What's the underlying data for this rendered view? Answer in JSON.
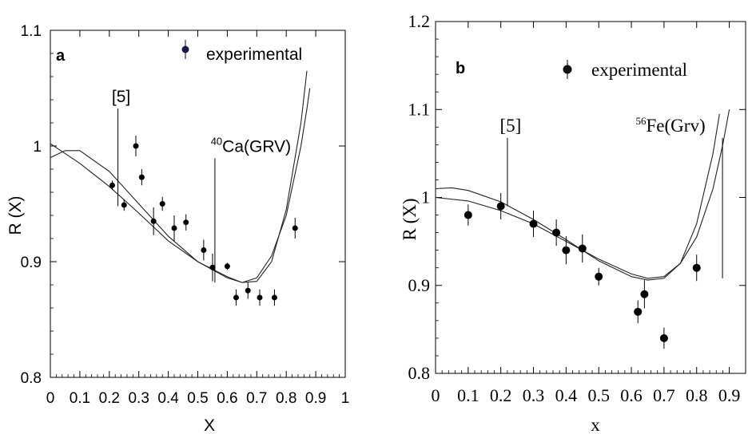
{
  "chart_data": [
    {
      "type": "scatter",
      "panel_label": "a",
      "xlabel": "X",
      "ylabel": "R (X)",
      "xlim": [
        0,
        1
      ],
      "ylim": [
        0.8,
        1.1
      ],
      "x_ticks": [
        "0",
        "0.1",
        "0.2",
        "0.3",
        "0.4",
        "0.5",
        "0.6",
        "0.7",
        "0.8",
        "0.9",
        "1"
      ],
      "y_ticks": [
        "0.8",
        "0.9",
        "1",
        "1.1"
      ],
      "legend": {
        "label": "experimental",
        "position": "top-right"
      },
      "annotations": [
        {
          "text": "[5]",
          "x": 0.24,
          "y": 1.038
        },
        {
          "text_sup": "40",
          "text": "Ca(GRV)",
          "x": 0.68,
          "y": 0.995
        }
      ],
      "series": [
        {
          "kind": "points",
          "points": [
            {
              "x": 0.21,
              "y": 0.966,
              "err": 0.004
            },
            {
              "x": 0.25,
              "y": 0.949,
              "err": 0.005
            },
            {
              "x": 0.29,
              "y": 1.0,
              "err": 0.009
            },
            {
              "x": 0.31,
              "y": 0.973,
              "err": 0.007
            },
            {
              "x": 0.35,
              "y": 0.935,
              "err": 0.012
            },
            {
              "x": 0.38,
              "y": 0.95,
              "err": 0.006
            },
            {
              "x": 0.42,
              "y": 0.929,
              "err": 0.011
            },
            {
              "x": 0.46,
              "y": 0.934,
              "err": 0.007
            },
            {
              "x": 0.52,
              "y": 0.91,
              "err": 0.009
            },
            {
              "x": 0.55,
              "y": 0.895,
              "err": 0.012
            },
            {
              "x": 0.6,
              "y": 0.896,
              "err": 0.003
            },
            {
              "x": 0.63,
              "y": 0.869,
              "err": 0.007
            },
            {
              "x": 0.67,
              "y": 0.875,
              "err": 0.007
            },
            {
              "x": 0.71,
              "y": 0.869,
              "err": 0.007
            },
            {
              "x": 0.76,
              "y": 0.869,
              "err": 0.007
            },
            {
              "x": 0.83,
              "y": 0.929,
              "err": 0.009
            }
          ]
        },
        {
          "kind": "curve",
          "points": [
            [
              0.0,
              1.002
            ],
            [
              0.1,
              0.985
            ],
            [
              0.2,
              0.965
            ],
            [
              0.3,
              0.942
            ],
            [
              0.4,
              0.918
            ],
            [
              0.5,
              0.9
            ],
            [
              0.6,
              0.886
            ],
            [
              0.65,
              0.882
            ],
            [
              0.7,
              0.886
            ],
            [
              0.75,
              0.905
            ],
            [
              0.8,
              0.94
            ],
            [
              0.85,
              1.0
            ],
            [
              0.87,
              1.032
            ],
            [
              0.88,
              1.05
            ]
          ]
        },
        {
          "kind": "curve",
          "points": [
            [
              0.0,
              0.99
            ],
            [
              0.05,
              0.996
            ],
            [
              0.1,
              0.996
            ],
            [
              0.2,
              0.978
            ],
            [
              0.3,
              0.95
            ],
            [
              0.4,
              0.922
            ],
            [
              0.5,
              0.9
            ],
            [
              0.6,
              0.887
            ],
            [
              0.65,
              0.882
            ],
            [
              0.7,
              0.883
            ],
            [
              0.75,
              0.9
            ],
            [
              0.8,
              0.945
            ],
            [
              0.85,
              1.02
            ],
            [
              0.87,
              1.065
            ]
          ]
        }
      ]
    },
    {
      "type": "scatter",
      "panel_label": "b",
      "xlabel": "x",
      "ylabel": "R (X)",
      "xlim": [
        0,
        0.95
      ],
      "ylim": [
        0.8,
        1.2
      ],
      "x_ticks": [
        "0",
        "0.1",
        "0.2",
        "0.3",
        "0.4",
        "0.5",
        "0.6",
        "0.7",
        "0.8",
        "0.9"
      ],
      "y_ticks": [
        "0.8",
        "0.9",
        "1",
        "1.1",
        "1.2"
      ],
      "legend": {
        "label": "experimental",
        "position": "top-right"
      },
      "annotations": [
        {
          "text": "[5]",
          "x": 0.23,
          "y": 1.075
        },
        {
          "text_sup": "56",
          "text": "Fe(Grv)",
          "x": 0.72,
          "y": 1.075
        }
      ],
      "series": [
        {
          "kind": "points",
          "points": [
            {
              "x": 0.1,
              "y": 0.98,
              "err": 0.012
            },
            {
              "x": 0.2,
              "y": 0.99,
              "err": 0.015
            },
            {
              "x": 0.3,
              "y": 0.97,
              "err": 0.015
            },
            {
              "x": 0.37,
              "y": 0.96,
              "err": 0.015
            },
            {
              "x": 0.4,
              "y": 0.94,
              "err": 0.016
            },
            {
              "x": 0.45,
              "y": 0.942,
              "err": 0.016
            },
            {
              "x": 0.5,
              "y": 0.91,
              "err": 0.01
            },
            {
              "x": 0.62,
              "y": 0.87,
              "err": 0.013
            },
            {
              "x": 0.64,
              "y": 0.89,
              "err": 0.016
            },
            {
              "x": 0.7,
              "y": 0.84,
              "err": 0.012
            },
            {
              "x": 0.8,
              "y": 0.92,
              "err": 0.015
            }
          ]
        },
        {
          "kind": "curve",
          "points": [
            [
              0.0,
              1.01
            ],
            [
              0.05,
              1.011
            ],
            [
              0.1,
              1.008
            ],
            [
              0.2,
              0.995
            ],
            [
              0.3,
              0.975
            ],
            [
              0.4,
              0.952
            ],
            [
              0.5,
              0.928
            ],
            [
              0.6,
              0.91
            ],
            [
              0.65,
              0.906
            ],
            [
              0.7,
              0.908
            ],
            [
              0.75,
              0.925
            ],
            [
              0.8,
              0.97
            ],
            [
              0.85,
              1.05
            ],
            [
              0.87,
              1.095
            ]
          ]
        },
        {
          "kind": "curve",
          "points": [
            [
              0.0,
              1.0
            ],
            [
              0.1,
              0.996
            ],
            [
              0.2,
              0.985
            ],
            [
              0.3,
              0.97
            ],
            [
              0.4,
              0.95
            ],
            [
              0.5,
              0.93
            ],
            [
              0.6,
              0.913
            ],
            [
              0.65,
              0.908
            ],
            [
              0.7,
              0.91
            ],
            [
              0.75,
              0.925
            ],
            [
              0.8,
              0.955
            ],
            [
              0.85,
              1.01
            ],
            [
              0.88,
              1.06
            ],
            [
              0.9,
              1.1
            ]
          ]
        }
      ]
    }
  ]
}
